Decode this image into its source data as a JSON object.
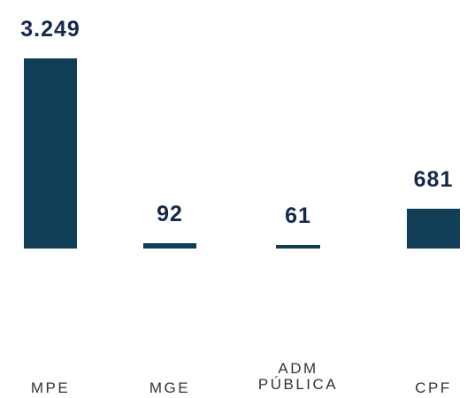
{
  "chart_data": {
    "type": "bar",
    "categories": [
      "MPE",
      "MGE",
      "ADM PÚBLICA",
      "CPF"
    ],
    "values": [
      3249,
      92,
      61,
      681
    ],
    "value_labels": [
      "3.249",
      "92",
      "61",
      "681"
    ],
    "color": "#123d57"
  }
}
